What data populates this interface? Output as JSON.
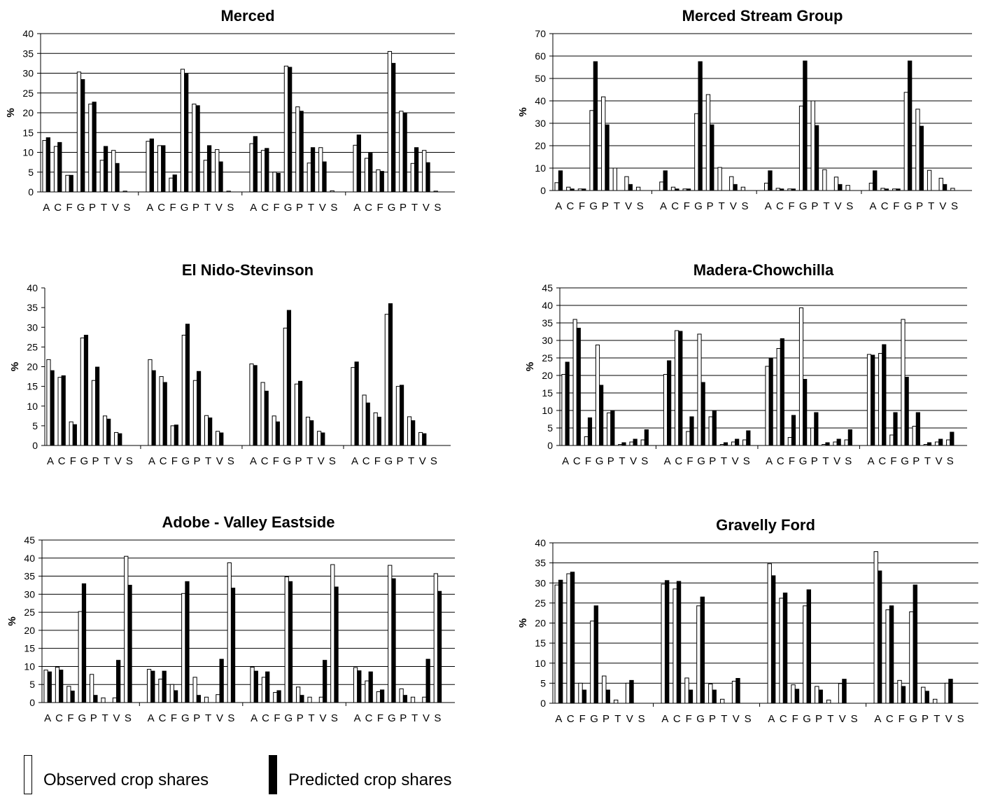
{
  "colors": {
    "observed": "#ffffff",
    "predicted": "#000000",
    "axis": "#000000",
    "grid": "#000000"
  },
  "legend": {
    "observed_label": "Observed crop shares",
    "predicted_label": "Predicted crop shares"
  },
  "chart_data": [
    {
      "type": "bar",
      "title": "Merced",
      "ylabel": "%",
      "ylim": [
        0,
        40
      ],
      "ystep": 5,
      "categories": [
        "A",
        "C",
        "F",
        "G",
        "P",
        "T",
        "V",
        "S"
      ],
      "groups": 4,
      "grid": true,
      "series": [
        {
          "name": "Observed crop shares",
          "values": [
            [
              13,
              11.5,
              4.2,
              30.3,
              22.2,
              8,
              10.5,
              0.2
            ],
            [
              12.8,
              11.7,
              3.5,
              31,
              22.2,
              8,
              10.7,
              0.2
            ],
            [
              12.2,
              10.5,
              5,
              31.8,
              21.5,
              7.3,
              11.2,
              0.3
            ],
            [
              11.8,
              8.5,
              5.6,
              35.5,
              20.4,
              7.2,
              10.5,
              0.2
            ]
          ]
        },
        {
          "name": "Predicted crop shares",
          "values": [
            [
              13.7,
              12.5,
              4.2,
              28.4,
              22.7,
              11.5,
              7.2,
              0
            ],
            [
              13.4,
              11.7,
              4.3,
              29.8,
              21.8,
              11.7,
              7.6,
              0
            ],
            [
              14,
              11,
              4.7,
              31.5,
              20.4,
              11.2,
              7.6,
              0
            ],
            [
              14.4,
              9.8,
              5.2,
              32.5,
              19.9,
              11.2,
              7.4,
              0
            ]
          ]
        }
      ]
    },
    {
      "type": "bar",
      "title": "Merced Stream Group",
      "ylabel": "%",
      "ylim": [
        0,
        70
      ],
      "ystep": 10,
      "categories": [
        "A",
        "C",
        "F",
        "G",
        "P",
        "T",
        "V",
        "S"
      ],
      "groups": 4,
      "grid": true,
      "series": [
        {
          "name": "Observed crop shares",
          "values": [
            [
              3.5,
              1.5,
              0.7,
              35.7,
              41.8,
              10,
              6.2,
              1.5
            ],
            [
              3.8,
              1.5,
              0.7,
              34.3,
              42.8,
              10.3,
              6.2,
              1.5
            ],
            [
              3.3,
              1,
              0.7,
              37.7,
              40,
              9.3,
              6,
              2.3
            ],
            [
              3.3,
              1,
              0.7,
              43.8,
              36.3,
              9,
              5.5,
              1
            ]
          ]
        },
        {
          "name": "Predicted crop shares",
          "values": [
            [
              8.8,
              0.7,
              0.7,
              57.5,
              29.3,
              0,
              2.7,
              0
            ],
            [
              8.8,
              0.7,
              0.7,
              57.5,
              29.3,
              0,
              2.7,
              0
            ],
            [
              8.8,
              0.7,
              0.7,
              57.8,
              29,
              0,
              2.7,
              0
            ],
            [
              8.8,
              0.7,
              0.7,
              57.8,
              28.7,
              0,
              2.7,
              0
            ]
          ]
        }
      ]
    },
    {
      "type": "bar",
      "title": "El Nido-Stevinson",
      "ylabel": "%",
      "ylim": [
        0,
        40
      ],
      "ystep": 5,
      "categories": [
        "A",
        "C",
        "F",
        "G",
        "P",
        "T",
        "V",
        "S"
      ],
      "groups": 4,
      "grid": false,
      "series": [
        {
          "name": "Observed crop shares",
          "values": [
            [
              21.8,
              17.3,
              6,
              27.3,
              16.5,
              7.5,
              3.3,
              0
            ],
            [
              21.8,
              17.5,
              5,
              28,
              16.5,
              7.6,
              3.6,
              0
            ],
            [
              20.7,
              16,
              7.5,
              29.8,
              15.6,
              7.2,
              3.6,
              0
            ],
            [
              19.8,
              12.8,
              8.3,
              33.3,
              15,
              7.3,
              3.3,
              0
            ]
          ]
        },
        {
          "name": "Predicted crop shares",
          "values": [
            [
              19,
              17.7,
              5.3,
              28,
              19.9,
              6.7,
              3,
              0
            ],
            [
              19,
              16,
              5.2,
              30.8,
              18.8,
              7,
              3.2,
              0
            ],
            [
              20.3,
              13.8,
              6,
              34.3,
              16.3,
              6.3,
              3.2,
              0
            ],
            [
              21.2,
              10.8,
              7.2,
              36,
              15.3,
              6.3,
              3,
              0
            ]
          ]
        }
      ]
    },
    {
      "type": "bar",
      "title": "Madera-Chowchilla",
      "ylabel": "%",
      "ylim": [
        0,
        45
      ],
      "ystep": 5,
      "categories": [
        "A",
        "C",
        "F",
        "G",
        "P",
        "T",
        "V",
        "S"
      ],
      "groups": 4,
      "grid": true,
      "series": [
        {
          "name": "Observed crop shares",
          "values": [
            [
              20.3,
              36,
              2.5,
              28.7,
              9.3,
              0.3,
              1,
              1.6
            ],
            [
              20.3,
              32.8,
              4,
              31.8,
              8.2,
              0.3,
              1,
              1.6
            ],
            [
              22.6,
              27.7,
              2.3,
              39.3,
              5,
              0.3,
              1,
              1.6
            ],
            [
              26,
              26.3,
              3,
              36,
              5.5,
              0.3,
              1,
              1.6
            ]
          ]
        },
        {
          "name": "Predicted crop shares",
          "values": [
            [
              23.8,
              33.5,
              7.9,
              17.2,
              10,
              0.8,
              1.8,
              4.5
            ],
            [
              24.2,
              32.6,
              8.2,
              18,
              9.9,
              0.8,
              1.8,
              4.2
            ],
            [
              25,
              30.5,
              8.6,
              18.9,
              9.4,
              0.8,
              1.8,
              4.5
            ],
            [
              25.8,
              28.8,
              9.4,
              19.5,
              9.4,
              0.8,
              1.8,
              3.8
            ]
          ]
        }
      ]
    },
    {
      "type": "bar",
      "title": "Adobe - Valley Eastside",
      "ylabel": "%",
      "ylim": [
        0,
        45
      ],
      "ystep": 5,
      "categories": [
        "A",
        "C",
        "F",
        "G",
        "P",
        "T",
        "V",
        "S"
      ],
      "groups": 4,
      "grid": true,
      "series": [
        {
          "name": "Observed crop shares",
          "values": [
            [
              9,
              9.8,
              4.5,
              25.2,
              7.8,
              1.3,
              1.3,
              40.5
            ],
            [
              9.2,
              6.5,
              5,
              30.2,
              7,
              1.5,
              2.2,
              38.7
            ],
            [
              9.8,
              7,
              2.8,
              34.8,
              4.3,
              1.5,
              1.5,
              38.2
            ],
            [
              9.7,
              6,
              3,
              38,
              3.8,
              1.5,
              1.5,
              35.7
            ]
          ]
        },
        {
          "name": "Predicted crop shares",
          "values": [
            [
              8.5,
              9,
              3.2,
              32.9,
              2,
              0,
              11.7,
              32.5
            ],
            [
              8.7,
              8.7,
              3.3,
              33.5,
              2,
              0,
              12,
              31.7
            ],
            [
              8.7,
              8.5,
              3.3,
              33.5,
              2,
              0,
              11.7,
              32
            ],
            [
              8.8,
              8.5,
              3.5,
              34.3,
              2,
              0,
              12,
              30.8
            ]
          ]
        }
      ]
    },
    {
      "type": "bar",
      "title": "Gravelly Ford",
      "ylabel": "%",
      "ylim": [
        0,
        40
      ],
      "ystep": 5,
      "categories": [
        "A",
        "C",
        "F",
        "G",
        "P",
        "T",
        "V",
        "S"
      ],
      "groups": 4,
      "grid": true,
      "series": [
        {
          "name": "Observed crop shares",
          "values": [
            [
              29.5,
              32.3,
              5,
              20.5,
              6.8,
              0.8,
              5,
              0
            ],
            [
              29.7,
              28.5,
              6.3,
              24.3,
              4.8,
              1,
              5.5,
              0
            ],
            [
              34.8,
              26.2,
              4.6,
              24.3,
              4.2,
              0.8,
              4.9,
              0
            ],
            [
              37.8,
              23.3,
              5.7,
              22.8,
              4,
              1,
              5,
              0
            ]
          ]
        },
        {
          "name": "Predicted crop shares",
          "values": [
            [
              30.7,
              32.7,
              3.3,
              24.3,
              3.3,
              0,
              5.7,
              0
            ],
            [
              30.6,
              30.4,
              3.3,
              26.5,
              3.3,
              0,
              6.2,
              0
            ],
            [
              31.8,
              27.5,
              3.5,
              28.3,
              3.3,
              0,
              6,
              0
            ],
            [
              33,
              24.3,
              4.2,
              29.5,
              3,
              0,
              6,
              0
            ]
          ]
        }
      ]
    }
  ]
}
